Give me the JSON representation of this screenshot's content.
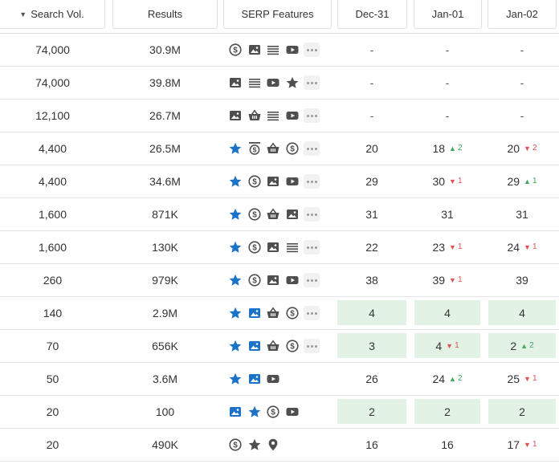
{
  "colors": {
    "gray_icon": "#4f4f4f",
    "blue_icon": "#1a73c9",
    "highlight": "#e2f3e5",
    "up": "#3cab5c",
    "down": "#e35252"
  },
  "header": {
    "search_vol": "Search Vol.",
    "results": "Results",
    "serp_features": "SERP Features",
    "dates": [
      "Dec-31",
      "Jan-01",
      "Jan-02"
    ]
  },
  "rows": [
    {
      "vol": "74,000",
      "results": "30.9M",
      "icons": [
        [
          "dollar",
          "g"
        ],
        [
          "image",
          "g"
        ],
        [
          "lines",
          "g"
        ],
        [
          "video",
          "g"
        ]
      ],
      "more": true,
      "pos": [
        {
          "v": "-"
        },
        {
          "v": "-"
        },
        {
          "v": "-"
        }
      ]
    },
    {
      "vol": "74,000",
      "results": "39.8M",
      "icons": [
        [
          "image",
          "g"
        ],
        [
          "lines",
          "g"
        ],
        [
          "video",
          "g"
        ],
        [
          "star",
          "g"
        ]
      ],
      "more": true,
      "pos": [
        {
          "v": "-"
        },
        {
          "v": "-"
        },
        {
          "v": "-"
        }
      ]
    },
    {
      "vol": "12,100",
      "results": "26.7M",
      "icons": [
        [
          "image",
          "g"
        ],
        [
          "basket",
          "g"
        ],
        [
          "lines",
          "g"
        ],
        [
          "video",
          "g"
        ]
      ],
      "more": true,
      "pos": [
        {
          "v": "-"
        },
        {
          "v": "-"
        },
        {
          "v": "-"
        }
      ]
    },
    {
      "vol": "4,400",
      "results": "26.5M",
      "icons": [
        [
          "star",
          "b"
        ],
        [
          "topdollar",
          "g"
        ],
        [
          "basket",
          "g"
        ],
        [
          "dollar",
          "g"
        ]
      ],
      "more": true,
      "pos": [
        {
          "v": "20"
        },
        {
          "v": "18",
          "d": "up",
          "c": "2"
        },
        {
          "v": "20",
          "d": "down",
          "c": "2"
        }
      ]
    },
    {
      "vol": "4,400",
      "results": "34.6M",
      "icons": [
        [
          "star",
          "b"
        ],
        [
          "dollar",
          "g"
        ],
        [
          "image",
          "g"
        ],
        [
          "video",
          "g"
        ]
      ],
      "more": true,
      "pos": [
        {
          "v": "29"
        },
        {
          "v": "30",
          "d": "down",
          "c": "1"
        },
        {
          "v": "29",
          "d": "up",
          "c": "1"
        }
      ]
    },
    {
      "vol": "1,600",
      "results": "871K",
      "icons": [
        [
          "star",
          "b"
        ],
        [
          "dollar",
          "g"
        ],
        [
          "basket",
          "g"
        ],
        [
          "image",
          "g"
        ]
      ],
      "more": true,
      "pos": [
        {
          "v": "31"
        },
        {
          "v": "31"
        },
        {
          "v": "31"
        }
      ]
    },
    {
      "vol": "1,600",
      "results": "130K",
      "icons": [
        [
          "star",
          "b"
        ],
        [
          "dollar",
          "g"
        ],
        [
          "image",
          "g"
        ],
        [
          "lines",
          "g"
        ]
      ],
      "more": true,
      "pos": [
        {
          "v": "22"
        },
        {
          "v": "23",
          "d": "down",
          "c": "1"
        },
        {
          "v": "24",
          "d": "down",
          "c": "1"
        }
      ]
    },
    {
      "vol": "260",
      "results": "979K",
      "icons": [
        [
          "star",
          "b"
        ],
        [
          "dollar",
          "g"
        ],
        [
          "image",
          "g"
        ],
        [
          "video",
          "g"
        ]
      ],
      "more": true,
      "pos": [
        {
          "v": "38"
        },
        {
          "v": "39",
          "d": "down",
          "c": "1"
        },
        {
          "v": "39"
        }
      ]
    },
    {
      "vol": "140",
      "results": "2.9M",
      "icons": [
        [
          "star",
          "b"
        ],
        [
          "image",
          "b"
        ],
        [
          "basket",
          "g"
        ],
        [
          "dollar",
          "g"
        ]
      ],
      "more": true,
      "pos": [
        {
          "v": "4",
          "hl": true
        },
        {
          "v": "4",
          "hl": true
        },
        {
          "v": "4",
          "hl": true
        }
      ]
    },
    {
      "vol": "70",
      "results": "656K",
      "icons": [
        [
          "star",
          "b"
        ],
        [
          "image",
          "b"
        ],
        [
          "basket",
          "g"
        ],
        [
          "dollar",
          "g"
        ]
      ],
      "more": true,
      "pos": [
        {
          "v": "3",
          "hl": true
        },
        {
          "v": "4",
          "d": "down",
          "c": "1",
          "hl": true
        },
        {
          "v": "2",
          "d": "up",
          "c": "2",
          "hl": true
        }
      ]
    },
    {
      "vol": "50",
      "results": "3.6M",
      "icons": [
        [
          "star",
          "b"
        ],
        [
          "image",
          "b"
        ],
        [
          "video",
          "g"
        ]
      ],
      "more": false,
      "pos": [
        {
          "v": "26"
        },
        {
          "v": "24",
          "d": "up",
          "c": "2"
        },
        {
          "v": "25",
          "d": "down",
          "c": "1"
        }
      ]
    },
    {
      "vol": "20",
      "results": "100",
      "icons": [
        [
          "image",
          "b"
        ],
        [
          "star",
          "b"
        ],
        [
          "dollar",
          "g"
        ],
        [
          "video",
          "g"
        ]
      ],
      "more": false,
      "pos": [
        {
          "v": "2",
          "hl": true
        },
        {
          "v": "2",
          "hl": true
        },
        {
          "v": "2",
          "hl": true
        }
      ]
    },
    {
      "vol": "20",
      "results": "490K",
      "icons": [
        [
          "dollar",
          "g"
        ],
        [
          "star",
          "g"
        ],
        [
          "pin",
          "g"
        ]
      ],
      "more": false,
      "pos": [
        {
          "v": "16"
        },
        {
          "v": "16"
        },
        {
          "v": "17",
          "d": "down",
          "c": "1"
        }
      ]
    }
  ]
}
